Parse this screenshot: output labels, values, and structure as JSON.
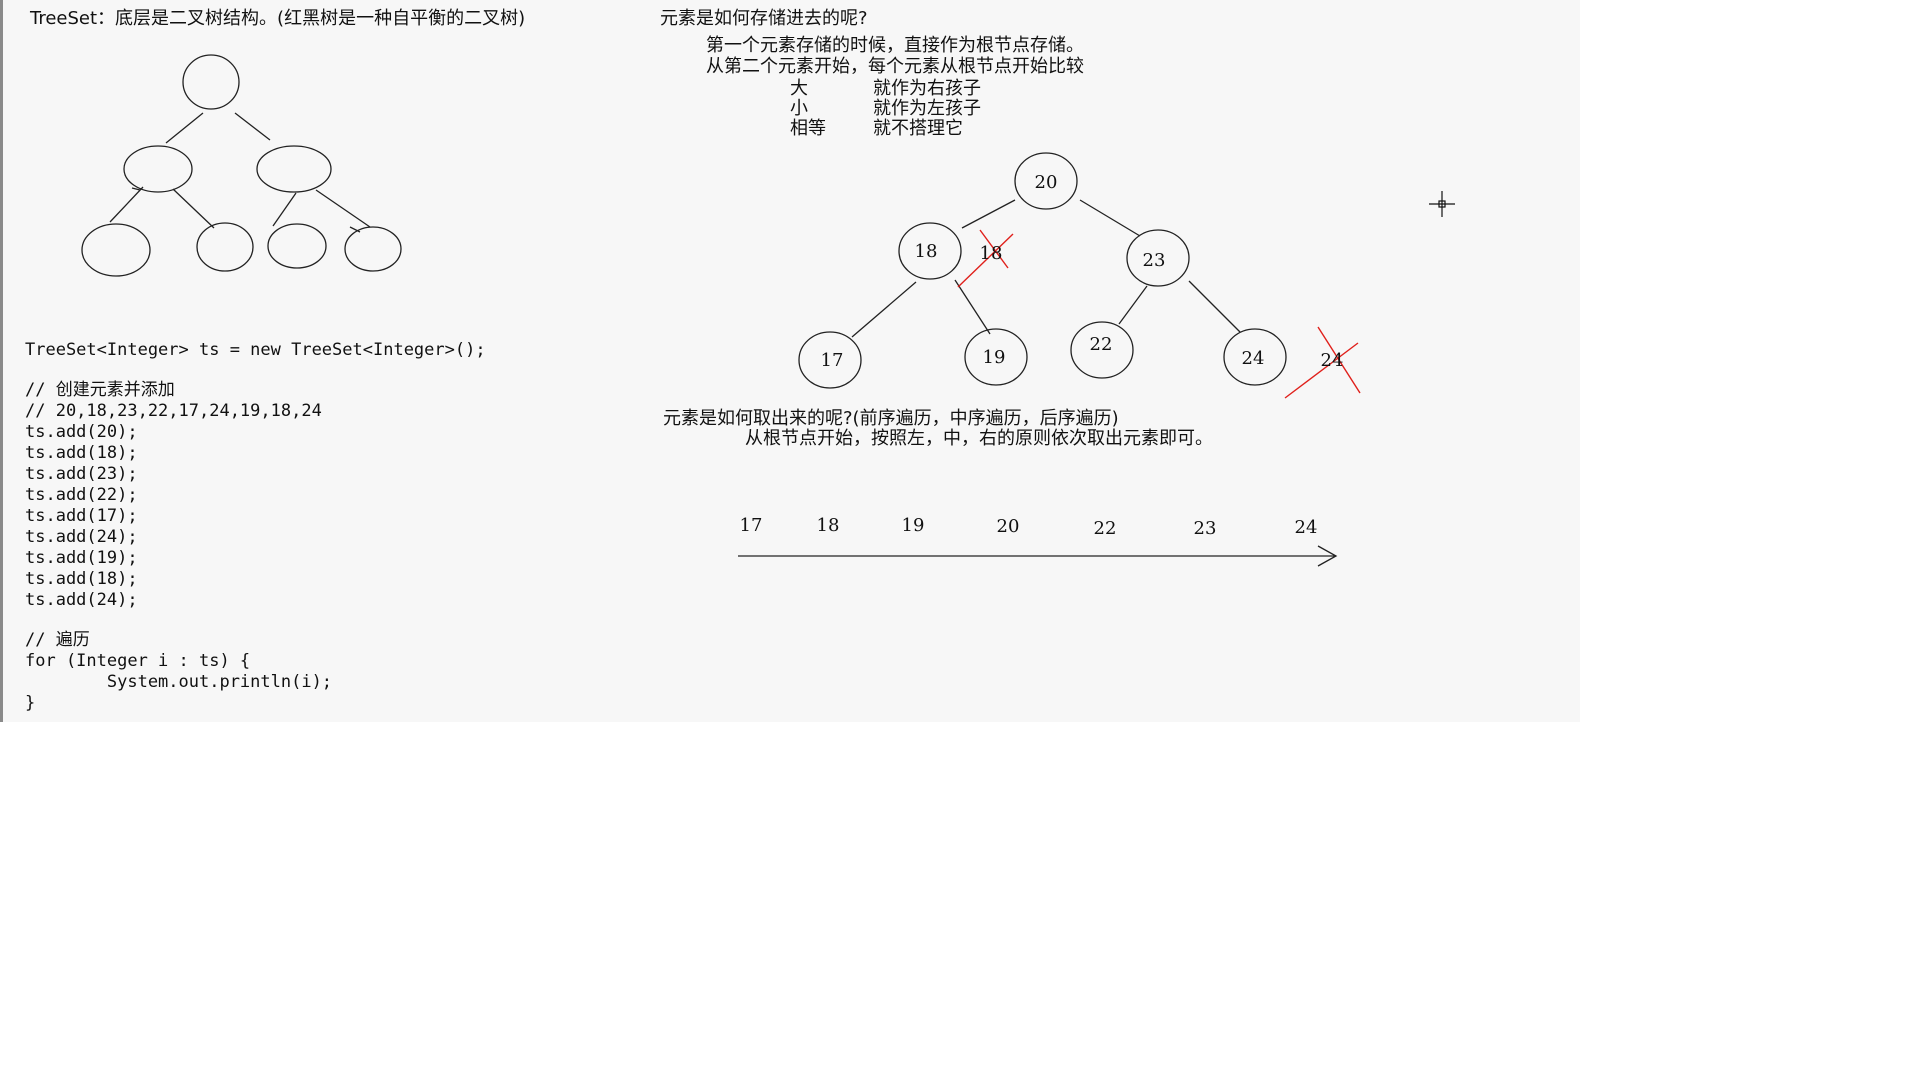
{
  "header_left": "TreeSet：底层是二叉树结构。(红黑树是一种自平衡的二叉树)",
  "storage": {
    "title": "元素是如何存储进去的呢?",
    "line1": "第一个元素存储的时候，直接作为根节点存储。",
    "line2": "从第二个元素开始，每个元素从根节点开始比较",
    "rules": [
      {
        "key": "大",
        "value": "就作为右孩子"
      },
      {
        "key": "小",
        "value": "就作为左孩子"
      },
      {
        "key": "相等",
        "value": "就不搭理它"
      }
    ]
  },
  "tree_nodes": [
    "20",
    "18",
    "23",
    "17",
    "19",
    "22",
    "24"
  ],
  "rejected_nodes": [
    "18",
    "24"
  ],
  "code": {
    "declaration": "TreeSet<Integer> ts = new TreeSet<Integer>();",
    "comment_create": "// 创建元素并添加",
    "comment_values": "// 20,18,23,22,17,24,19,18,24",
    "adds": [
      "ts.add(20);",
      "ts.add(18);",
      "ts.add(23);",
      "ts.add(22);",
      "ts.add(17);",
      "ts.add(24);",
      "ts.add(19);",
      "ts.add(18);",
      "ts.add(24);"
    ],
    "comment_traverse": "// 遍历",
    "for_line": "for (Integer i : ts) {",
    "body_line": "        System.out.println(i);",
    "close": "}"
  },
  "retrieval": {
    "title": "元素是如何取出来的呢?(前序遍历，中序遍历，后序遍历)",
    "line": "从根节点开始，按照左，中，右的原则依次取出元素即可。"
  },
  "sequence": [
    "17",
    "18",
    "19",
    "20",
    "22",
    "23",
    "24"
  ],
  "colors": {
    "strike": "#e0201b",
    "stroke": "#222222"
  }
}
